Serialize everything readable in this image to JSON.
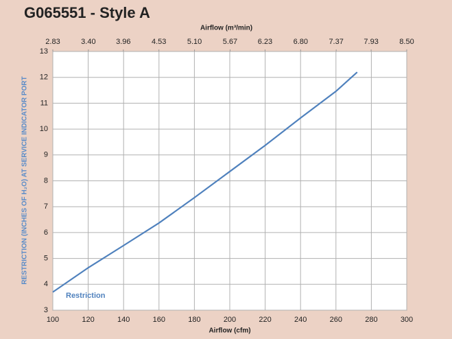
{
  "chart_data": {
    "type": "line",
    "title": "G065551 - Style A",
    "xlabel": "Airflow (cfm)",
    "x2label": "Airflow (m³/min)",
    "ylabel": "RESTRICTION (INCHES OF H₂O) AT SERVICE INDICATOR PORT",
    "x": [
      100,
      120,
      140,
      160,
      180,
      200,
      220,
      240,
      260,
      272
    ],
    "series": [
      {
        "name": "Restriction",
        "color": "#4f81bd",
        "values": [
          3.7,
          4.64,
          5.5,
          6.37,
          7.35,
          8.36,
          9.37,
          10.43,
          11.46,
          12.2
        ]
      }
    ],
    "xlim": [
      100,
      300
    ],
    "xticks": [
      100,
      120,
      140,
      160,
      180,
      200,
      220,
      240,
      260,
      280,
      300
    ],
    "x2lim": [
      2.83,
      8.5
    ],
    "x2ticks": [
      2.83,
      {
        "value": 3.4,
        "label": "3.40"
      },
      3.96,
      4.53,
      {
        "value": 5.1,
        "label": "5.10"
      },
      5.67,
      6.23,
      {
        "value": 6.8,
        "label": "6.80"
      },
      7.37,
      7.93,
      {
        "value": 8.5,
        "label": "8.50"
      }
    ],
    "ylim": [
      3,
      13
    ],
    "yticks": [
      3,
      4,
      5,
      6,
      7,
      8,
      9,
      10,
      11,
      12,
      13
    ],
    "grid": true
  }
}
